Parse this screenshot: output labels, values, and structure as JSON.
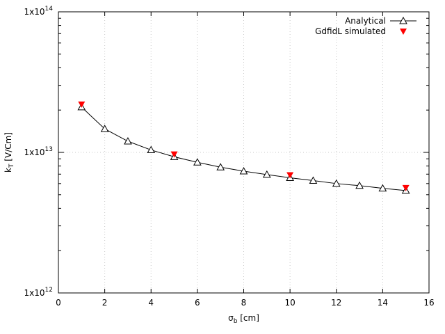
{
  "chart_data": {
    "type": "scatter",
    "xlabel_sym": "σ",
    "xlabel_sub": "b",
    "xlabel_rest": " [cm]",
    "ylabel_sym": "k",
    "ylabel_sub": "T",
    "ylabel_rest": " [V/Cm]",
    "xlim": [
      0,
      16
    ],
    "ylim": [
      1000000000000.0,
      100000000000000.0
    ],
    "yscale": "log",
    "grid": true,
    "legend_position": "top-right",
    "x_ticks": [
      0,
      2,
      4,
      6,
      8,
      10,
      12,
      14,
      16
    ],
    "x_tick_labels": [
      "0",
      "2",
      "4",
      "6",
      "8",
      "10",
      "12",
      "14",
      "16"
    ],
    "y_ticks": [
      {
        "value": 1000000000000.0,
        "mantissa": "1x10",
        "exponent": "12"
      },
      {
        "value": 10000000000000.0,
        "mantissa": "1x10",
        "exponent": "13"
      },
      {
        "value": 100000000000000.0,
        "mantissa": "1x10",
        "exponent": "14"
      }
    ],
    "series": [
      {
        "name": "Analytical",
        "style": "line-open-triangle",
        "color": "#000000",
        "x": [
          1,
          2,
          3,
          4,
          5,
          6,
          7,
          8,
          9,
          10,
          11,
          12,
          13,
          14,
          15
        ],
        "y": [
          21000000000000.0,
          14700000000000.0,
          12000000000000.0,
          10400000000000.0,
          9300000000000.0,
          8500000000000.0,
          7850000000000.0,
          7350000000000.0,
          6950000000000.0,
          6600000000000.0,
          6300000000000.0,
          6000000000000.0,
          5800000000000.0,
          5550000000000.0,
          5350000000000.0
        ]
      },
      {
        "name": "GdfidL simulated",
        "style": "filled-down-triangle",
        "color": "#ff0000",
        "x": [
          1,
          5,
          10,
          15
        ],
        "y": [
          22000000000000.0,
          9700000000000.0,
          6900000000000.0,
          5600000000000.0
        ]
      }
    ]
  }
}
